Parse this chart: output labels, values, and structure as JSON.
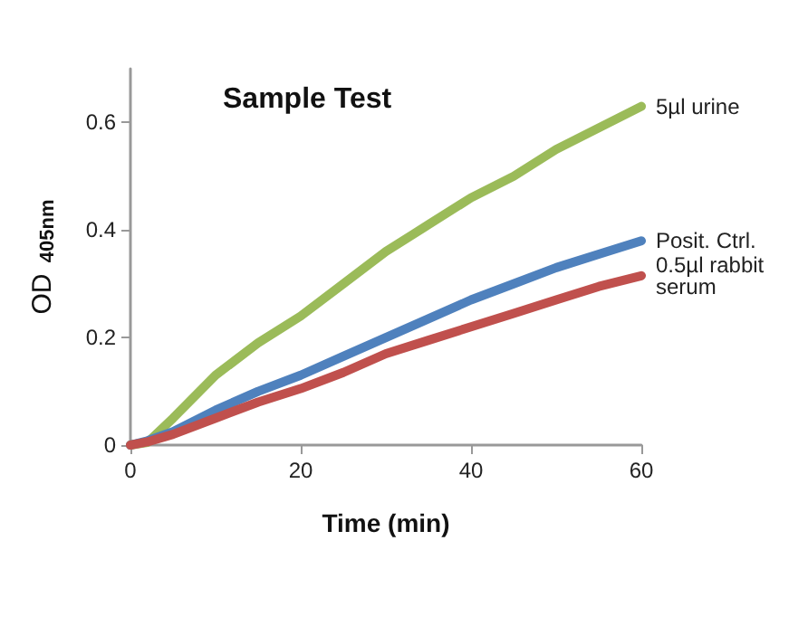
{
  "chart_data": {
    "type": "line",
    "title": "Sample Test",
    "xlabel": "Time (min)",
    "ylabel": "OD $_{405nm}$",
    "x": [
      0,
      2,
      5,
      10,
      15,
      20,
      25,
      30,
      35,
      40,
      45,
      50,
      55,
      60
    ],
    "series": [
      {
        "name": "5µl urine",
        "color": "#9bbb59",
        "values": [
          0,
          0.005,
          0.05,
          0.13,
          0.19,
          0.24,
          0.3,
          0.36,
          0.41,
          0.46,
          0.5,
          0.55,
          0.59,
          0.63
        ]
      },
      {
        "name": "Posit. Ctrl.",
        "color": "#4f81bd",
        "values": [
          0,
          0.008,
          0.025,
          0.065,
          0.1,
          0.13,
          0.165,
          0.2,
          0.235,
          0.27,
          0.3,
          0.33,
          0.355,
          0.38
        ]
      },
      {
        "name": "0.5µl rabbit serum",
        "color": "#c0504d",
        "values": [
          0,
          0.006,
          0.02,
          0.05,
          0.08,
          0.105,
          0.135,
          0.17,
          0.195,
          0.22,
          0.245,
          0.27,
          0.295,
          0.315
        ]
      }
    ],
    "xlim": [
      0,
      60
    ],
    "xticks": [
      0,
      20,
      40,
      60
    ],
    "ylim": [
      0,
      0.7
    ],
    "yticks": [
      0,
      0.2,
      0.4,
      0.6
    ],
    "grid": false,
    "legend": false,
    "marker": "none",
    "line_style": "solid"
  }
}
